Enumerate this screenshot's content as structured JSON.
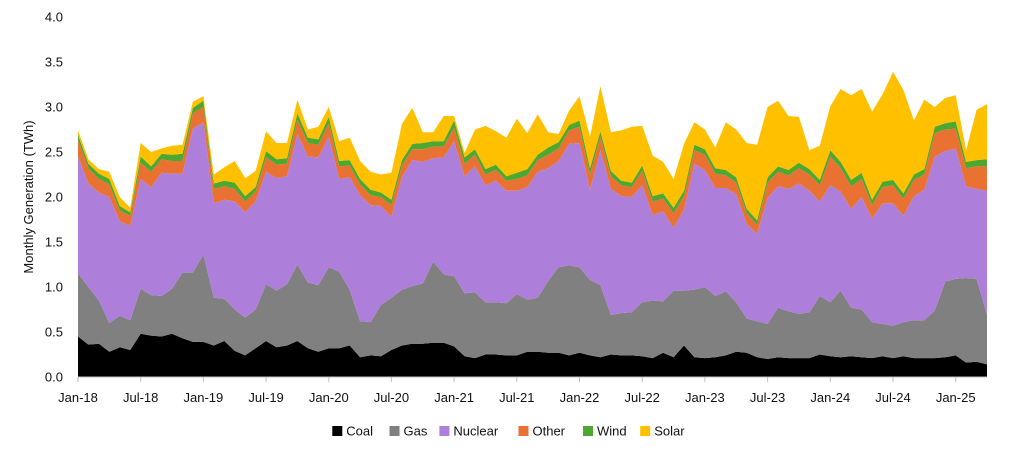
{
  "chart_data": {
    "type": "area",
    "stacked": true,
    "title": "",
    "xlabel": "",
    "ylabel": "Monthly Generation (TWh)",
    "ylim": [
      0,
      4.0
    ],
    "yticks": [
      "0.0",
      "0.5",
      "1.0",
      "1.5",
      "2.0",
      "2.5",
      "3.0",
      "3.5",
      "4.0"
    ],
    "xtick_labels": [
      "Jan-18",
      "Jul-18",
      "Jan-19",
      "Jul-19",
      "Jan-20",
      "Jul-20",
      "Jan-21",
      "Jul-21",
      "Jan-22",
      "Jul-22",
      "Jan-23",
      "Jul-23",
      "Jan-24",
      "Jul-24",
      "Jan-25"
    ],
    "x_start": "Jan-18",
    "months": 88,
    "grid": false,
    "legend_position": "bottom",
    "series": [
      {
        "name": "Coal",
        "color": "#000000",
        "values": [
          0.45,
          0.36,
          0.37,
          0.28,
          0.33,
          0.3,
          0.48,
          0.46,
          0.45,
          0.48,
          0.43,
          0.39,
          0.39,
          0.35,
          0.4,
          0.29,
          0.24,
          0.32,
          0.4,
          0.33,
          0.35,
          0.4,
          0.32,
          0.28,
          0.32,
          0.32,
          0.35,
          0.22,
          0.24,
          0.23,
          0.3,
          0.35,
          0.37,
          0.37,
          0.38,
          0.38,
          0.34,
          0.23,
          0.21,
          0.25,
          0.25,
          0.24,
          0.24,
          0.28,
          0.28,
          0.27,
          0.27,
          0.24,
          0.27,
          0.24,
          0.22,
          0.25,
          0.24,
          0.24,
          0.23,
          0.21,
          0.27,
          0.22,
          0.35,
          0.22,
          0.21,
          0.22,
          0.24,
          0.28,
          0.27,
          0.22,
          0.2,
          0.22,
          0.21,
          0.21,
          0.21,
          0.25,
          0.23,
          0.22,
          0.23,
          0.22,
          0.21,
          0.23,
          0.21,
          0.23,
          0.21,
          0.21,
          0.21,
          0.22,
          0.24,
          0.16,
          0.17,
          0.14
        ]
      },
      {
        "name": "Gas",
        "color": "#808080",
        "values": [
          0.7,
          0.64,
          0.48,
          0.32,
          0.35,
          0.33,
          0.5,
          0.45,
          0.45,
          0.5,
          0.73,
          0.77,
          0.97,
          0.53,
          0.47,
          0.46,
          0.42,
          0.43,
          0.63,
          0.63,
          0.68,
          0.85,
          0.73,
          0.74,
          0.9,
          0.85,
          0.62,
          0.4,
          0.37,
          0.57,
          0.58,
          0.62,
          0.64,
          0.67,
          0.9,
          0.76,
          0.78,
          0.7,
          0.73,
          0.58,
          0.58,
          0.58,
          0.68,
          0.58,
          0.6,
          0.8,
          0.95,
          1.0,
          0.95,
          0.84,
          0.8,
          0.44,
          0.47,
          0.48,
          0.6,
          0.64,
          0.57,
          0.74,
          0.61,
          0.75,
          0.79,
          0.68,
          0.71,
          0.55,
          0.38,
          0.4,
          0.39,
          0.55,
          0.52,
          0.49,
          0.51,
          0.65,
          0.6,
          0.74,
          0.54,
          0.53,
          0.4,
          0.36,
          0.36,
          0.38,
          0.42,
          0.42,
          0.53,
          0.84,
          0.85,
          0.94,
          0.92,
          0.55
        ]
      },
      {
        "name": "Nuclear",
        "color": "#AD7FDB",
        "values": [
          1.3,
          1.15,
          1.2,
          1.4,
          1.05,
          1.05,
          1.22,
          1.2,
          1.37,
          1.28,
          1.1,
          1.6,
          1.47,
          1.05,
          1.1,
          1.2,
          1.17,
          1.2,
          1.25,
          1.25,
          1.2,
          1.45,
          1.4,
          1.42,
          1.45,
          1.03,
          1.25,
          1.4,
          1.3,
          1.1,
          0.9,
          1.25,
          1.4,
          1.35,
          1.15,
          1.3,
          1.5,
          1.3,
          1.4,
          1.3,
          1.35,
          1.25,
          1.15,
          1.25,
          1.4,
          1.25,
          1.18,
          1.35,
          1.38,
          1.0,
          1.5,
          1.4,
          1.3,
          1.28,
          1.3,
          0.95,
          1.0,
          0.7,
          0.9,
          1.4,
          1.3,
          1.2,
          1.15,
          1.2,
          1.05,
          0.97,
          1.4,
          1.35,
          1.36,
          1.45,
          1.35,
          1.05,
          1.3,
          1.1,
          1.1,
          1.25,
          1.15,
          1.34,
          1.36,
          1.18,
          1.38,
          1.45,
          1.71,
          1.45,
          1.45,
          1.02,
          1.0,
          1.38
        ]
      },
      {
        "name": "Other",
        "color": "#E97132",
        "values": [
          0.18,
          0.17,
          0.15,
          0.14,
          0.12,
          0.11,
          0.18,
          0.17,
          0.15,
          0.14,
          0.14,
          0.17,
          0.17,
          0.16,
          0.15,
          0.14,
          0.12,
          0.11,
          0.16,
          0.15,
          0.14,
          0.16,
          0.15,
          0.14,
          0.15,
          0.14,
          0.13,
          0.12,
          0.11,
          0.1,
          0.13,
          0.13,
          0.12,
          0.14,
          0.13,
          0.12,
          0.15,
          0.14,
          0.13,
          0.12,
          0.12,
          0.11,
          0.13,
          0.13,
          0.13,
          0.15,
          0.14,
          0.15,
          0.18,
          0.17,
          0.15,
          0.14,
          0.12,
          0.11,
          0.16,
          0.15,
          0.14,
          0.16,
          0.15,
          0.15,
          0.17,
          0.16,
          0.14,
          0.13,
          0.12,
          0.1,
          0.17,
          0.16,
          0.15,
          0.17,
          0.18,
          0.18,
          0.32,
          0.26,
          0.25,
          0.2,
          0.15,
          0.18,
          0.2,
          0.19,
          0.18,
          0.17,
          0.26,
          0.24,
          0.22,
          0.2,
          0.25,
          0.27
        ]
      },
      {
        "name": "Wind",
        "color": "#4EA72E",
        "values": [
          0.06,
          0.05,
          0.06,
          0.06,
          0.05,
          0.04,
          0.07,
          0.06,
          0.06,
          0.07,
          0.08,
          0.06,
          0.07,
          0.06,
          0.06,
          0.07,
          0.06,
          0.05,
          0.07,
          0.06,
          0.06,
          0.07,
          0.06,
          0.06,
          0.07,
          0.06,
          0.06,
          0.06,
          0.06,
          0.05,
          0.06,
          0.06,
          0.06,
          0.07,
          0.06,
          0.06,
          0.08,
          0.07,
          0.06,
          0.06,
          0.06,
          0.05,
          0.07,
          0.07,
          0.06,
          0.08,
          0.07,
          0.06,
          0.07,
          0.07,
          0.06,
          0.06,
          0.05,
          0.05,
          0.06,
          0.06,
          0.06,
          0.06,
          0.06,
          0.06,
          0.06,
          0.06,
          0.06,
          0.06,
          0.05,
          0.05,
          0.06,
          0.06,
          0.06,
          0.06,
          0.06,
          0.06,
          0.07,
          0.07,
          0.07,
          0.07,
          0.06,
          0.06,
          0.06,
          0.06,
          0.06,
          0.06,
          0.07,
          0.07,
          0.08,
          0.07,
          0.07,
          0.08
        ]
      },
      {
        "name": "Solar",
        "color": "#FFC000",
        "values": [
          0.05,
          0.05,
          0.05,
          0.08,
          0.1,
          0.05,
          0.15,
          0.16,
          0.06,
          0.1,
          0.1,
          0.07,
          0.05,
          0.1,
          0.15,
          0.24,
          0.2,
          0.18,
          0.22,
          0.18,
          0.17,
          0.15,
          0.09,
          0.14,
          0.11,
          0.22,
          0.25,
          0.2,
          0.2,
          0.2,
          0.3,
          0.4,
          0.4,
          0.12,
          0.1,
          0.28,
          0.05,
          0.05,
          0.22,
          0.48,
          0.37,
          0.43,
          0.6,
          0.4,
          0.45,
          0.17,
          0.09,
          0.16,
          0.27,
          0.35,
          0.5,
          0.43,
          0.56,
          0.62,
          0.44,
          0.45,
          0.35,
          0.32,
          0.52,
          0.25,
          0.22,
          0.23,
          0.53,
          0.53,
          0.73,
          0.84,
          0.78,
          0.73,
          0.6,
          0.51,
          0.21,
          0.38,
          0.49,
          0.81,
          0.94,
          0.93,
          0.98,
          0.97,
          1.2,
          1.15,
          0.6,
          0.77,
          0.22,
          0.28,
          0.29,
          0.13,
          0.56,
          0.61
        ]
      }
    ]
  }
}
